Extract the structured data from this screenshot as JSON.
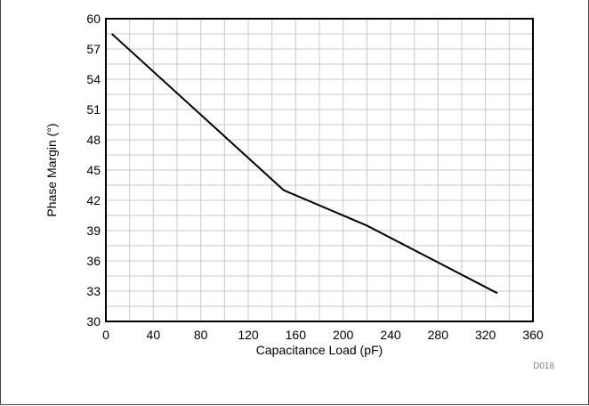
{
  "chart_data": {
    "type": "line",
    "title": "",
    "xlabel": "Capacitance Load (pF)",
    "ylabel": "Phase Margin (°)",
    "xlim": [
      0,
      360
    ],
    "ylim": [
      30,
      60
    ],
    "x_ticks": [
      0,
      40,
      80,
      120,
      160,
      200,
      240,
      280,
      320,
      360
    ],
    "y_ticks": [
      30,
      33,
      36,
      39,
      42,
      45,
      48,
      51,
      54,
      57,
      60
    ],
    "x_minor_step": 20,
    "y_minor_step": 1.5,
    "grid": true,
    "legend": "none",
    "line_color": "#000000",
    "series": [
      {
        "x": [
          5,
          150,
          220,
          330
        ],
        "values": [
          58.5,
          43,
          39.5,
          32.8
        ]
      }
    ],
    "figure_code": "D018"
  }
}
